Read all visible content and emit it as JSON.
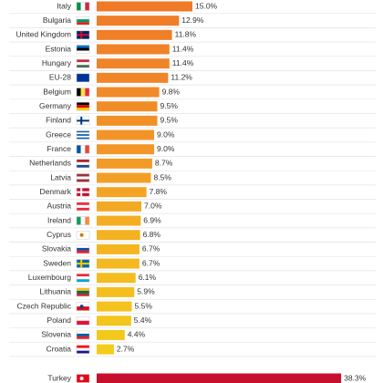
{
  "chart_data": {
    "type": "bar",
    "orientation": "horizontal",
    "categories": [
      "Italy",
      "Bulgaria",
      "United Kingdom",
      "Estonia",
      "Hungary",
      "EU-28",
      "Belgium",
      "Germany",
      "Finland",
      "Greece",
      "France",
      "Netherlands",
      "Latvia",
      "Denmark",
      "Austria",
      "Ireland",
      "Cyprus",
      "Slovakia",
      "Sweden",
      "Luxembourg",
      "Lithuania",
      "Czech Republic",
      "Poland",
      "Slovenia",
      "Croatia"
    ],
    "values": [
      15.0,
      12.9,
      11.8,
      11.4,
      11.4,
      11.2,
      9.8,
      9.5,
      9.5,
      9.0,
      9.0,
      8.7,
      8.5,
      7.8,
      7.0,
      6.9,
      6.8,
      6.7,
      6.7,
      6.1,
      5.9,
      5.5,
      5.4,
      4.4,
      2.7
    ],
    "value_labels": [
      "15.0%",
      "12.9%",
      "11.8%",
      "11.4%",
      "11.4%",
      "11.2%",
      "9.8%",
      "9.5%",
      "9.5%",
      "9.0%",
      "9.0%",
      "8.7%",
      "8.5%",
      "7.8%",
      "7.0%",
      "6.9%",
      "6.8%",
      "6.7%",
      "6.7%",
      "6.1%",
      "5.9%",
      "5.5%",
      "5.4%",
      "4.4%",
      "2.7%"
    ],
    "colors": [
      "#ef7a28",
      "#f07d28",
      "#f07f28",
      "#f08228",
      "#f08428",
      "#f08628",
      "#f18a28",
      "#f18d27",
      "#f19027",
      "#f29427",
      "#f29727",
      "#f29b26",
      "#f39f26",
      "#f3a425",
      "#f3a924",
      "#f4ad23",
      "#f4b122",
      "#f4b521",
      "#f4b820",
      "#f4bc1f",
      "#f4bf1e",
      "#f4c21d",
      "#f4c51c",
      "#f4c81b",
      "#f4cb1a"
    ],
    "flags": [
      {
        "dir": "v",
        "stripes": [
          "#009246",
          "#ffffff",
          "#ce2b37"
        ]
      },
      {
        "dir": "h",
        "stripes": [
          "#ffffff",
          "#00966e",
          "#d62612"
        ]
      },
      {
        "dir": "h",
        "stripes": [
          "#012169"
        ],
        "cross": "#c8102e"
      },
      {
        "dir": "h",
        "stripes": [
          "#0072ce",
          "#000000",
          "#ffffff"
        ]
      },
      {
        "dir": "h",
        "stripes": [
          "#ce2939",
          "#ffffff",
          "#477050"
        ]
      },
      {
        "dir": "h",
        "stripes": [
          "#003399"
        ]
      },
      {
        "dir": "v",
        "stripes": [
          "#000000",
          "#fae042",
          "#ed2939"
        ]
      },
      {
        "dir": "h",
        "stripes": [
          "#000000",
          "#dd0000",
          "#ffce00"
        ]
      },
      {
        "dir": "h",
        "stripes": [
          "#ffffff"
        ],
        "cross": "#003580"
      },
      {
        "dir": "h",
        "stripes": [
          "#0d5eaf",
          "#ffffff",
          "#0d5eaf",
          "#ffffff",
          "#0d5eaf"
        ]
      },
      {
        "dir": "v",
        "stripes": [
          "#0055a4",
          "#ffffff",
          "#ef4135"
        ]
      },
      {
        "dir": "h",
        "stripes": [
          "#ae1c28",
          "#ffffff",
          "#21468b"
        ]
      },
      {
        "dir": "h",
        "stripes": [
          "#9e3039",
          "#ffffff",
          "#9e3039"
        ]
      },
      {
        "dir": "h",
        "stripes": [
          "#c8102e"
        ],
        "cross": "#ffffff"
      },
      {
        "dir": "h",
        "stripes": [
          "#ed2939",
          "#ffffff",
          "#ed2939"
        ]
      },
      {
        "dir": "v",
        "stripes": [
          "#169b62",
          "#ffffff",
          "#ff883e"
        ]
      },
      {
        "dir": "h",
        "stripes": [
          "#ffffff"
        ],
        "dot": "#d57800"
      },
      {
        "dir": "h",
        "stripes": [
          "#ffffff",
          "#0b4ea2",
          "#ee1c25"
        ]
      },
      {
        "dir": "h",
        "stripes": [
          "#006aa7"
        ],
        "cross": "#fecc00"
      },
      {
        "dir": "h",
        "stripes": [
          "#ed2939",
          "#ffffff",
          "#00a1de"
        ]
      },
      {
        "dir": "h",
        "stripes": [
          "#fdb913",
          "#006a44",
          "#c1272d"
        ]
      },
      {
        "dir": "h",
        "stripes": [
          "#ffffff",
          "#d7141a"
        ],
        "dot": "#11457e"
      },
      {
        "dir": "h",
        "stripes": [
          "#ffffff",
          "#dc143c"
        ]
      },
      {
        "dir": "h",
        "stripes": [
          "#ffffff",
          "#005da4",
          "#ed1c24"
        ]
      },
      {
        "dir": "h",
        "stripes": [
          "#ff0000",
          "#ffffff",
          "#171796"
        ]
      }
    ],
    "highlight": {
      "category": "Turkey",
      "value": 38.3,
      "value_label": "38.3%",
      "color": "#c8102e",
      "flag": {
        "dir": "h",
        "stripes": [
          "#e30a17"
        ],
        "dot": "#ffffff"
      }
    },
    "xlim": [
      0,
      40
    ]
  }
}
